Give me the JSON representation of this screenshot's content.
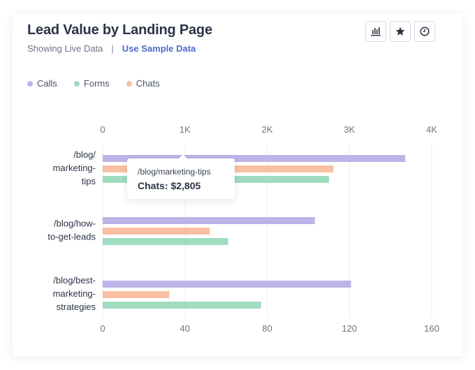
{
  "header": {
    "title": "Lead Value by Landing Page",
    "status_text": "Showing Live Data",
    "separator": "|",
    "sample_link": "Use Sample Data"
  },
  "toolbar": {
    "icons": [
      "bar-chart-icon",
      "star-icon",
      "clock-icon"
    ]
  },
  "colors": {
    "calls": "#bdb3e8",
    "forms": "#9fdcc0",
    "chats": "#f9c0a3",
    "grid": "#eceef2",
    "axis_text": "#6b7386"
  },
  "chart_data": {
    "type": "bar",
    "orientation": "horizontal",
    "categories": [
      [
        "/blog/",
        "marketing-",
        "tips"
      ],
      [
        "/blog/how-",
        "to-get-leads"
      ],
      [
        "/blog/best-",
        "marketing-",
        "strategies"
      ]
    ],
    "series": [
      {
        "name": "Calls",
        "axis": "top",
        "values": [
          3680,
          2580,
          3020
        ]
      },
      {
        "name": "Chats",
        "axis": "top",
        "values": [
          2805,
          1300,
          810
        ]
      },
      {
        "name": "Forms",
        "axis": "bottom",
        "values": [
          110,
          61,
          77
        ]
      }
    ],
    "top_axis": {
      "ticks": [
        "0",
        "1K",
        "2K",
        "3K",
        "4K"
      ],
      "range": [
        0,
        4000
      ]
    },
    "bottom_axis": {
      "ticks": [
        "0",
        "40",
        "80",
        "120",
        "160"
      ],
      "range": [
        0,
        160
      ]
    },
    "legend": {
      "position": "top-left",
      "order": [
        "Calls",
        "Forms",
        "Chats"
      ]
    },
    "grid": true
  },
  "tooltip": {
    "title": "/blog/marketing-tips",
    "value": "Chats: $2,805"
  }
}
